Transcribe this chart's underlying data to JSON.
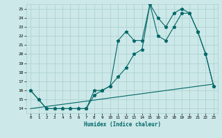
{
  "xlabel": "Humidex (Indice chaleur)",
  "bg_color": "#cce8e8",
  "grid_color": "#aacfcf",
  "line_color": "#006666",
  "xlim": [
    -0.5,
    23.5
  ],
  "ylim": [
    13.5,
    25.5
  ],
  "xticks": [
    0,
    1,
    2,
    3,
    4,
    5,
    6,
    7,
    8,
    9,
    10,
    11,
    12,
    13,
    14,
    15,
    16,
    17,
    18,
    19,
    20,
    21,
    22,
    23
  ],
  "yticks": [
    14,
    15,
    16,
    17,
    18,
    19,
    20,
    21,
    22,
    23,
    24,
    25
  ],
  "series1_x": [
    0,
    1,
    2,
    3,
    4,
    5,
    6,
    7,
    8,
    9,
    10,
    11,
    12,
    13,
    14,
    15,
    16,
    17,
    18,
    19,
    20,
    21,
    22,
    23
  ],
  "series1_y": [
    16,
    15,
    14,
    14,
    14,
    14,
    14,
    14,
    16,
    16,
    16.5,
    21.5,
    22.5,
    21.5,
    21.5,
    25.5,
    22,
    21.5,
    23,
    24.5,
    24.5,
    22.5,
    20,
    16.5
  ],
  "series2_x": [
    0,
    1,
    2,
    3,
    4,
    5,
    6,
    7,
    8,
    9,
    10,
    11,
    12,
    13,
    14,
    15,
    16,
    17,
    18,
    19,
    20,
    21,
    22,
    23
  ],
  "series2_y": [
    16,
    15,
    14,
    14,
    14,
    14,
    14,
    14,
    15.5,
    16,
    16.5,
    17.5,
    18.5,
    20,
    20.5,
    25.5,
    24,
    23,
    24.5,
    25,
    24.5,
    22.5,
    20,
    16.5
  ],
  "series3_x": [
    0,
    23
  ],
  "series3_y": [
    14,
    16.7
  ]
}
